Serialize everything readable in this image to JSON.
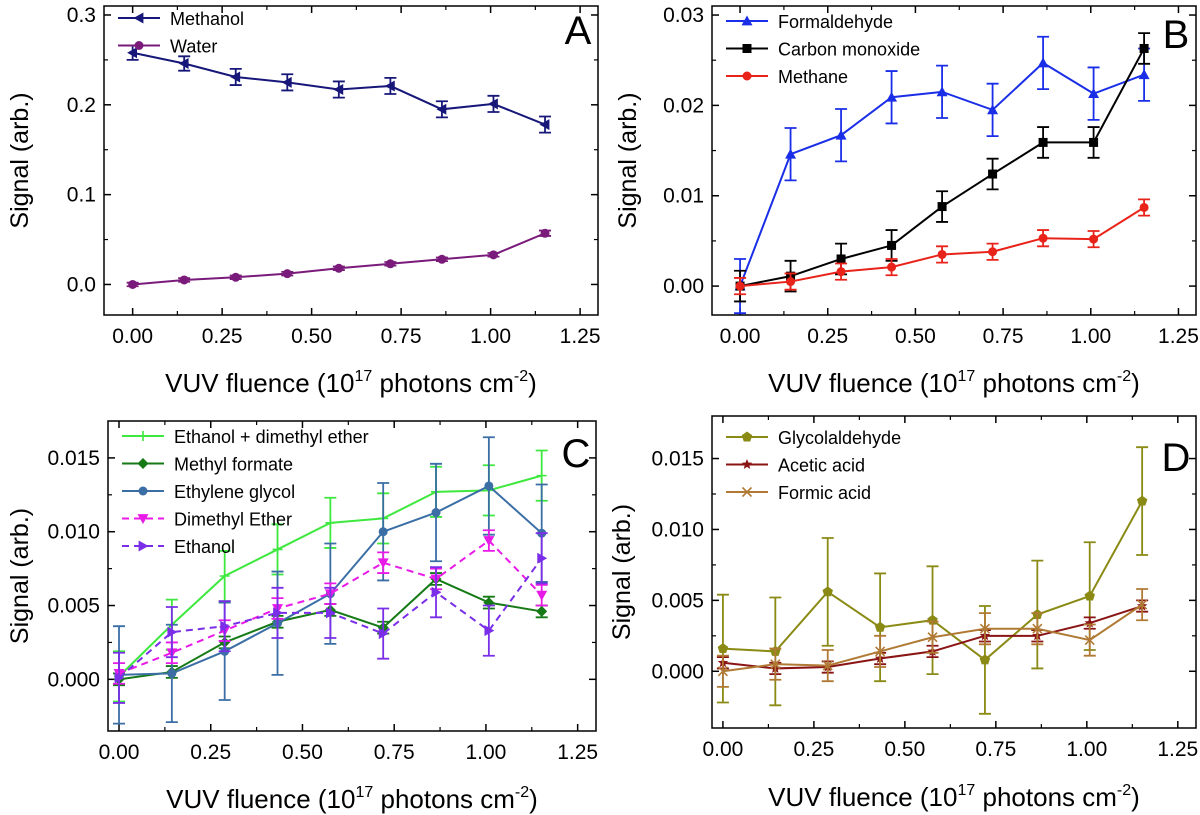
{
  "chart_data": [
    {
      "panel": "A",
      "type": "line",
      "xlabel": "VUV fluence (10^17 photons cm^-2)",
      "ylabel": "Signal (arb.)",
      "xlim": [
        -0.08,
        1.3
      ],
      "ylim": [
        -0.034,
        0.31
      ],
      "xticks": [
        0.0,
        0.25,
        0.5,
        0.75,
        1.0,
        1.25
      ],
      "xtick_labels": [
        "0.00",
        "0.25",
        "0.50",
        "0.75",
        "1.00",
        "1.25"
      ],
      "yticks": [
        0.0,
        0.1,
        0.2,
        0.3
      ],
      "ytick_labels": [
        "0.0",
        "0.1",
        "0.2",
        "0.3"
      ],
      "legend_position": "top-left",
      "series": [
        {
          "name": "Methanol",
          "color": "#17177a",
          "marker": "triangle-left",
          "dash": false,
          "x": [
            0,
            0.144,
            0.288,
            0.432,
            0.576,
            0.72,
            0.864,
            1.008,
            1.152
          ],
          "y": [
            0.258,
            0.246,
            0.231,
            0.225,
            0.217,
            0.221,
            0.195,
            0.201,
            0.178
          ],
          "err": [
            0.008,
            0.008,
            0.009,
            0.009,
            0.009,
            0.009,
            0.009,
            0.009,
            0.009
          ]
        },
        {
          "name": "Water",
          "color": "#7a1a7a",
          "marker": "circle",
          "dash": false,
          "x": [
            0,
            0.144,
            0.288,
            0.432,
            0.576,
            0.72,
            0.864,
            1.008,
            1.152
          ],
          "y": [
            0.0,
            0.005,
            0.008,
            0.012,
            0.018,
            0.023,
            0.028,
            0.033,
            0.057
          ],
          "err": [
            0.002,
            0.002,
            0.002,
            0.002,
            0.002,
            0.002,
            0.002,
            0.002,
            0.003
          ]
        }
      ]
    },
    {
      "panel": "B",
      "type": "line",
      "xlabel": "VUV fluence (10^17 photons cm^-2)",
      "ylabel": "Signal (arb.)",
      "xlim": [
        -0.08,
        1.3
      ],
      "ylim": [
        -0.0032,
        0.031
      ],
      "xticks": [
        0.0,
        0.25,
        0.5,
        0.75,
        1.0,
        1.25
      ],
      "xtick_labels": [
        "0.00",
        "0.25",
        "0.50",
        "0.75",
        "1.00",
        "1.25"
      ],
      "yticks": [
        0.0,
        0.01,
        0.02,
        0.03
      ],
      "ytick_labels": [
        "0.00",
        "0.01",
        "0.02",
        "0.03"
      ],
      "legend_position": "top-left",
      "series": [
        {
          "name": "Formaldehyde",
          "color": "#1a2ee8",
          "marker": "triangle-up",
          "dash": false,
          "x": [
            0,
            0.144,
            0.288,
            0.432,
            0.576,
            0.72,
            0.864,
            1.008,
            1.152
          ],
          "y": [
            0.0,
            0.0146,
            0.0167,
            0.0209,
            0.0215,
            0.0195,
            0.0247,
            0.0213,
            0.0234
          ],
          "err": [
            0.003,
            0.0029,
            0.0029,
            0.0029,
            0.0029,
            0.0029,
            0.0029,
            0.0029,
            0.0029
          ]
        },
        {
          "name": "Carbon monoxide",
          "color": "#000000",
          "marker": "square",
          "dash": false,
          "x": [
            0,
            0.144,
            0.288,
            0.432,
            0.576,
            0.72,
            0.864,
            1.008,
            1.152
          ],
          "y": [
            0.0,
            0.0011,
            0.003,
            0.0045,
            0.0088,
            0.0124,
            0.0159,
            0.0159,
            0.0263
          ],
          "err": [
            0.0017,
            0.0017,
            0.0017,
            0.0017,
            0.0017,
            0.0017,
            0.0017,
            0.0017,
            0.0017
          ]
        },
        {
          "name": "Methane",
          "color": "#e8231a",
          "marker": "circle",
          "dash": false,
          "x": [
            0,
            0.144,
            0.288,
            0.432,
            0.576,
            0.72,
            0.864,
            1.008,
            1.152
          ],
          "y": [
            0.0,
            0.0005,
            0.0016,
            0.0021,
            0.0035,
            0.0038,
            0.0053,
            0.0052,
            0.0087
          ],
          "err": [
            0.0009,
            0.0009,
            0.0009,
            0.0009,
            0.0009,
            0.0009,
            0.0009,
            0.0009,
            0.0009
          ]
        }
      ]
    },
    {
      "panel": "C",
      "type": "line",
      "xlabel": "VUV fluence (10^17 photons cm^-2)",
      "ylabel": "Signal (arb.)",
      "xlim": [
        -0.03,
        1.3
      ],
      "ylim": [
        -0.0035,
        0.0175
      ],
      "xticks": [
        0.0,
        0.25,
        0.5,
        0.75,
        1.0,
        1.25
      ],
      "xtick_labels": [
        "0.00",
        "0.25",
        "0.50",
        "0.75",
        "1.00",
        "1.25"
      ],
      "yticks": [
        0.0,
        0.005,
        0.01,
        0.015
      ],
      "ytick_labels": [
        "0.000",
        "0.005",
        "0.010",
        "0.015"
      ],
      "legend_position": "top-left",
      "series": [
        {
          "name": "Ethanol + dimethyl ether",
          "color": "#3ee83e",
          "marker": "plus",
          "dash": false,
          "x": [
            0,
            0.144,
            0.288,
            0.432,
            0.576,
            0.72,
            0.864,
            1.008,
            1.152
          ],
          "y": [
            0.0002,
            0.0037,
            0.007,
            0.0088,
            0.0106,
            0.0109,
            0.0127,
            0.0128,
            0.0138
          ],
          "err": [
            0.0017,
            0.0017,
            0.0017,
            0.0017,
            0.0017,
            0.0017,
            0.0017,
            0.0017,
            0.0017
          ]
        },
        {
          "name": "Methyl formate",
          "color": "#157a15",
          "marker": "diamond",
          "dash": false,
          "x": [
            0,
            0.144,
            0.288,
            0.432,
            0.576,
            0.72,
            0.864,
            1.008,
            1.152
          ],
          "y": [
            0.0,
            0.0005,
            0.0025,
            0.0039,
            0.0047,
            0.0035,
            0.0068,
            0.0052,
            0.0046
          ],
          "err": [
            0.0004,
            0.0004,
            0.0004,
            0.0004,
            0.0004,
            0.0004,
            0.0004,
            0.0004,
            0.0004
          ]
        },
        {
          "name": "Ethylene glycol",
          "color": "#3a6ea5",
          "marker": "circle",
          "dash": false,
          "x": [
            0,
            0.144,
            0.288,
            0.432,
            0.576,
            0.72,
            0.864,
            1.008,
            1.152
          ],
          "y": [
            0.0003,
            0.0004,
            0.0019,
            0.0038,
            0.0058,
            0.01,
            0.0113,
            0.0131,
            0.0099
          ],
          "err": [
            0.0033,
            0.0033,
            0.0033,
            0.0035,
            0.0034,
            0.0033,
            0.0033,
            0.0033,
            0.0033
          ]
        },
        {
          "name": "Dimethyl Ether",
          "color": "#e81ae8",
          "marker": "triangle-down",
          "dash": true,
          "x": [
            0,
            0.144,
            0.288,
            0.432,
            0.576,
            0.72,
            0.864,
            1.008,
            1.152
          ],
          "y": [
            0.0004,
            0.0018,
            0.0033,
            0.0048,
            0.0058,
            0.0079,
            0.0068,
            0.0094,
            0.0057
          ],
          "err": [
            0.0007,
            0.0007,
            0.0007,
            0.0007,
            0.0007,
            0.0007,
            0.0007,
            0.0007,
            0.0007
          ]
        },
        {
          "name": "Ethanol",
          "color": "#7a2ee8",
          "marker": "triangle-right",
          "dash": true,
          "x": [
            0,
            0.144,
            0.288,
            0.432,
            0.576,
            0.72,
            0.864,
            1.008,
            1.152
          ],
          "y": [
            0.0001,
            0.0032,
            0.0036,
            0.0045,
            0.0045,
            0.0031,
            0.0059,
            0.0033,
            0.0082
          ],
          "err": [
            0.0017,
            0.0017,
            0.0017,
            0.0017,
            0.0017,
            0.0017,
            0.0017,
            0.0017,
            0.0017
          ]
        }
      ]
    },
    {
      "panel": "D",
      "type": "line",
      "xlabel": "VUV fluence (10^17 photons cm^-2)",
      "ylabel": "Signal (arb.)",
      "xlim": [
        -0.03,
        1.3
      ],
      "ylim": [
        -0.004,
        0.018
      ],
      "xticks": [
        0.0,
        0.25,
        0.5,
        0.75,
        1.0,
        1.25
      ],
      "xtick_labels": [
        "0.00",
        "0.25",
        "0.50",
        "0.75",
        "1.00",
        "1.25"
      ],
      "yticks": [
        0.0,
        0.005,
        0.01,
        0.015
      ],
      "ytick_labels": [
        "0.000",
        "0.005",
        "0.010",
        "0.015"
      ],
      "legend_position": "top-left",
      "series": [
        {
          "name": "Glycolaldehyde",
          "color": "#8a8a14",
          "marker": "pentagon",
          "dash": false,
          "x": [
            0,
            0.144,
            0.288,
            0.432,
            0.576,
            0.72,
            0.864,
            1.008,
            1.152
          ],
          "y": [
            0.0016,
            0.0014,
            0.0056,
            0.0031,
            0.0036,
            0.0008,
            0.004,
            0.0053,
            0.012
          ],
          "err": [
            0.0038,
            0.0038,
            0.0038,
            0.0038,
            0.0038,
            0.0038,
            0.0038,
            0.0038,
            0.0038
          ]
        },
        {
          "name": "Acetic acid",
          "color": "#8a1414",
          "marker": "star",
          "dash": false,
          "x": [
            0,
            0.144,
            0.288,
            0.432,
            0.576,
            0.72,
            0.864,
            1.008,
            1.152
          ],
          "y": [
            0.0006,
            0.0002,
            0.0003,
            0.0009,
            0.0014,
            0.0025,
            0.0025,
            0.0034,
            0.0046
          ],
          "err": [
            0.0004,
            0.0004,
            0.0004,
            0.0004,
            0.0004,
            0.0004,
            0.0004,
            0.0004,
            0.0004
          ]
        },
        {
          "name": "Formic acid",
          "color": "#b07a35",
          "marker": "x",
          "dash": false,
          "x": [
            0,
            0.144,
            0.288,
            0.432,
            0.576,
            0.72,
            0.864,
            1.008,
            1.152
          ],
          "y": [
            0.0,
            0.0005,
            0.0004,
            0.0014,
            0.0024,
            0.003,
            0.003,
            0.0022,
            0.0047
          ],
          "err": [
            0.0011,
            0.0011,
            0.0011,
            0.0011,
            0.0011,
            0.0011,
            0.0011,
            0.0011,
            0.0011
          ]
        }
      ]
    }
  ]
}
